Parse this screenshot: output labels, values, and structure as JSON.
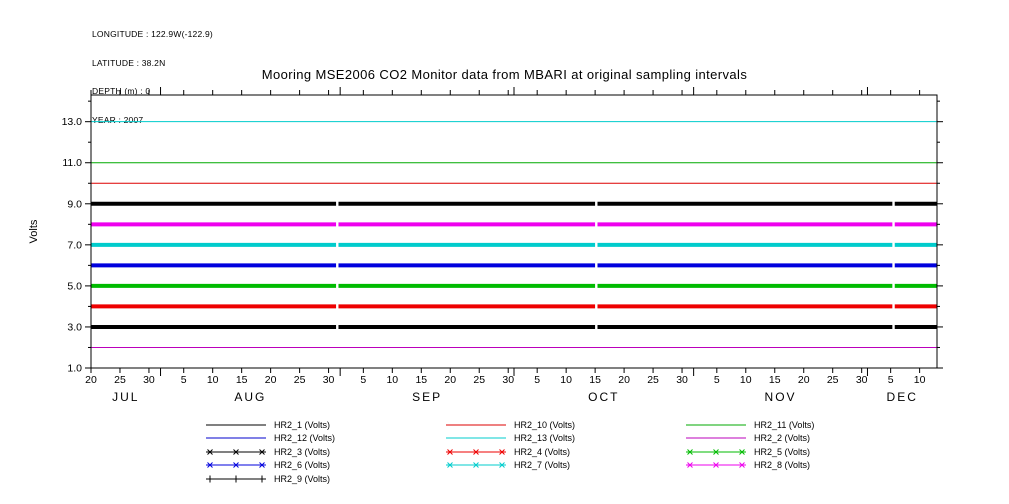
{
  "meta": {
    "longitude": "LONGITUDE : 122.9W(-122.9)",
    "latitude": "LATITUDE : 38.2N",
    "depth": "DEPTH (m) : 0",
    "year": "YEAR : 2007"
  },
  "title": "Mooring MSE2006 CO2 Monitor data from MBARI at original sampling intervals",
  "chart_data": {
    "type": "line",
    "title": "Mooring MSE2006 CO2 Monitor data from MBARI at original sampling intervals",
    "xlabel": "",
    "ylabel": "Volts",
    "ylim": [
      1.0,
      14.3
    ],
    "grid": false,
    "legend_position": "bottom",
    "y_axis": {
      "label": "Volts",
      "tick_labels": [
        "1.0",
        "3.0",
        "5.0",
        "7.0",
        "9.0",
        "11.0",
        "13.0"
      ],
      "tick_values": [
        1,
        3,
        5,
        7,
        9,
        11,
        13
      ],
      "minor_tick_values": [
        2,
        4,
        6,
        8,
        10,
        12,
        14
      ]
    },
    "x_axis": {
      "year": "2007",
      "total_days": 146,
      "months": [
        {
          "label": "JUL",
          "first_day": 20,
          "start_index": 0,
          "end_index": 12,
          "tick_labels": [
            "20",
            "25",
            "30"
          ]
        },
        {
          "label": "AUG",
          "first_day": 1,
          "start_index": 12,
          "end_index": 43,
          "tick_labels": [
            "5",
            "10",
            "15",
            "20",
            "25",
            "30"
          ]
        },
        {
          "label": "SEP",
          "first_day": 1,
          "start_index": 43,
          "end_index": 73,
          "tick_labels": [
            "5",
            "10",
            "15",
            "20",
            "25",
            "30"
          ]
        },
        {
          "label": "OCT",
          "first_day": 1,
          "start_index": 73,
          "end_index": 104,
          "tick_labels": [
            "5",
            "10",
            "15",
            "20",
            "25",
            "30"
          ]
        },
        {
          "label": "NOV",
          "first_day": 1,
          "start_index": 104,
          "end_index": 134,
          "tick_labels": [
            "5",
            "10",
            "15",
            "20",
            "25",
            "30"
          ]
        },
        {
          "label": "DEC",
          "first_day": 1,
          "start_index": 134,
          "end_index": 146,
          "tick_labels": [
            "5",
            "10"
          ]
        }
      ]
    },
    "series": [
      {
        "name": "HR2_1",
        "label": "HR2_1 (Volts)",
        "color": "#000000",
        "value": 1.0,
        "marker": "none",
        "thick": false
      },
      {
        "name": "HR2_2",
        "label": "HR2_2 (Volts)",
        "color": "#bb00bb",
        "value": 2.0,
        "marker": "none",
        "thick": false
      },
      {
        "name": "HR2_3",
        "label": "HR2_3 (Volts)",
        "color": "#000000",
        "value": 3.0,
        "marker": "x",
        "thick": true
      },
      {
        "name": "HR2_4",
        "label": "HR2_4 (Volts)",
        "color": "#ee0000",
        "value": 4.0,
        "marker": "x",
        "thick": true
      },
      {
        "name": "HR2_5",
        "label": "HR2_5 (Volts)",
        "color": "#00bb00",
        "value": 5.0,
        "marker": "x",
        "thick": true
      },
      {
        "name": "HR2_6",
        "label": "HR2_6 (Volts)",
        "color": "#0000dd",
        "value": 6.0,
        "marker": "x",
        "thick": true
      },
      {
        "name": "HR2_7",
        "label": "HR2_7 (Volts)",
        "color": "#00cccc",
        "value": 7.0,
        "marker": "x",
        "thick": true
      },
      {
        "name": "HR2_8",
        "label": "HR2_8 (Volts)",
        "color": "#ee00ee",
        "value": 8.0,
        "marker": "x",
        "thick": true
      },
      {
        "name": "HR2_9",
        "label": "HR2_9 (Volts)",
        "color": "#000000",
        "value": 9.0,
        "marker": "+",
        "thick": true
      },
      {
        "name": "HR2_10",
        "label": "HR2_10 (Volts)",
        "color": "#dd0000",
        "value": 10.0,
        "marker": "none",
        "thick": false
      },
      {
        "name": "HR2_11",
        "label": "HR2_11 (Volts)",
        "color": "#00aa00",
        "value": 11.0,
        "marker": "none",
        "thick": false
      },
      {
        "name": "HR2_12",
        "label": "HR2_12 (Volts)",
        "color": "#0000cc",
        "value": null,
        "marker": "none",
        "thick": false
      },
      {
        "name": "HR2_13",
        "label": "HR2_13 (Volts)",
        "color": "#00cccc",
        "value": 13.0,
        "marker": "none",
        "thick": false
      }
    ],
    "data_gap_day_indices": [
      42.5,
      87.2,
      138.5
    ],
    "legend_order": [
      [
        "HR2_1",
        "HR2_12",
        "HR2_3",
        "HR2_6",
        "HR2_9"
      ],
      [
        "HR2_10",
        "HR2_13",
        "HR2_4",
        "HR2_7"
      ],
      [
        "HR2_11",
        "HR2_2",
        "HR2_5",
        "HR2_8"
      ]
    ]
  }
}
